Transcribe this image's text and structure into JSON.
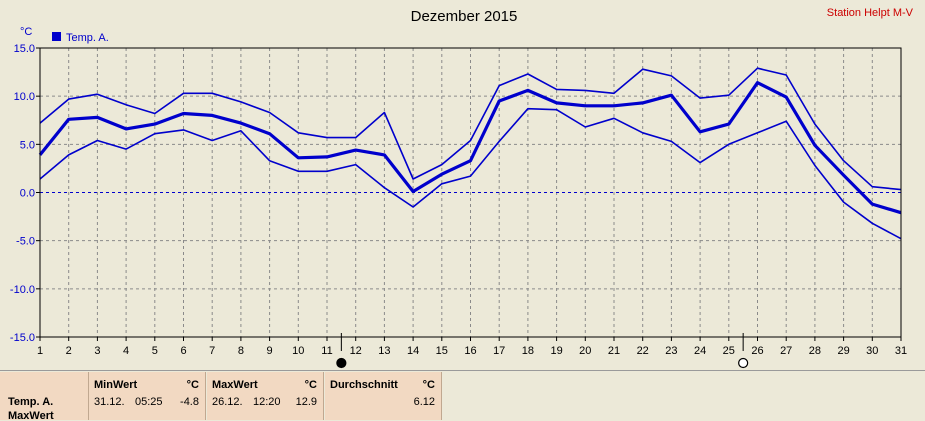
{
  "chart_data": {
    "type": "line",
    "title": "Dezember 2015",
    "station": "Station Helpt M-V",
    "y_unit": "°C",
    "legend": {
      "label": "Temp. A.",
      "color": "#0000cc",
      "placement": "top-left"
    },
    "x": [
      1,
      2,
      3,
      4,
      5,
      6,
      7,
      8,
      9,
      10,
      11,
      12,
      13,
      14,
      15,
      16,
      17,
      18,
      19,
      20,
      21,
      22,
      23,
      24,
      25,
      26,
      27,
      28,
      29,
      30,
      31
    ],
    "ylim": [
      -15,
      15
    ],
    "yticks": [
      "15.0",
      "10.0",
      "5.0",
      "0.0",
      "-5.0",
      "-10.0",
      "-15.0"
    ],
    "ytick_values": [
      15,
      10,
      5,
      0,
      -5,
      -10,
      -15
    ],
    "grid": true,
    "zero_line": true,
    "markers": [
      {
        "x": 11.5,
        "symbol": "filled-circle"
      },
      {
        "x": 25.5,
        "symbol": "open-circle"
      }
    ],
    "series": [
      {
        "style": "max",
        "values": [
          7.2,
          9.7,
          10.2,
          9.1,
          8.2,
          10.3,
          10.3,
          9.4,
          8.3,
          6.2,
          5.7,
          5.7,
          8.3,
          1.4,
          2.9,
          5.4,
          11.1,
          12.3,
          10.7,
          10.6,
          10.3,
          12.8,
          12.1,
          9.8,
          10.1,
          12.9,
          12.2,
          7.1,
          3.3,
          0.6,
          0.3
        ]
      },
      {
        "style": "mean",
        "values": [
          3.9,
          7.6,
          7.8,
          6.6,
          7.1,
          8.2,
          8.0,
          7.2,
          6.1,
          3.6,
          3.7,
          4.4,
          3.9,
          0.1,
          1.9,
          3.3,
          9.5,
          10.6,
          9.3,
          9.0,
          9.0,
          9.3,
          10.1,
          6.3,
          7.1,
          11.4,
          9.9,
          4.9,
          1.8,
          -1.2,
          -2.1
        ]
      },
      {
        "style": "min",
        "values": [
          1.4,
          3.9,
          5.4,
          4.5,
          6.1,
          6.5,
          5.4,
          6.4,
          3.3,
          2.2,
          2.2,
          2.9,
          0.5,
          -1.5,
          0.9,
          1.7,
          5.3,
          8.7,
          8.6,
          6.8,
          7.7,
          6.2,
          5.3,
          3.1,
          5.0,
          6.2,
          7.4,
          2.8,
          -1.0,
          -3.2,
          -4.8
        ]
      }
    ]
  },
  "footer": {
    "row_label": "Temp. A.",
    "row_label_2": "MaxWert",
    "min": {
      "header": "MinWert",
      "unit": "°C",
      "date": "31.12.",
      "time": "05:25",
      "value": "-4.8"
    },
    "max": {
      "header": "MaxWert",
      "unit": "°C",
      "date": "26.12.",
      "time": "12:20",
      "value": "12.9"
    },
    "avg": {
      "header": "Durchschnitt",
      "unit": "°C",
      "value": "6.12"
    }
  }
}
